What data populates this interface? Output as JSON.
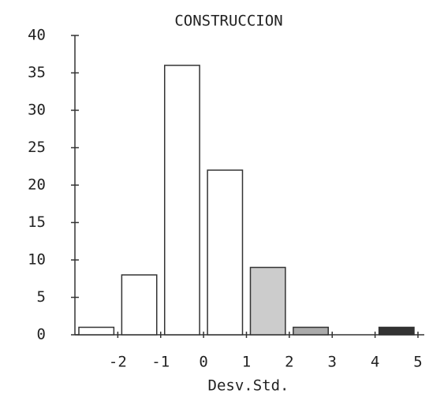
{
  "chart_data": {
    "type": "histogram",
    "title": "CONSTRUCCION",
    "x_label": "Desv.Std.",
    "bins": [
      -3,
      -2,
      -1,
      0,
      1,
      2,
      3,
      4,
      5
    ],
    "counts": [
      1,
      8,
      36,
      22,
      9,
      1,
      0,
      1
    ],
    "colors": [
      "#ffffff",
      "#ffffff",
      "#ffffff",
      "#ffffff",
      "#cccccc",
      "#aaaaaa",
      "#aaaaaa",
      "#333333"
    ],
    "xlim": [
      -3,
      5
    ],
    "xticks": [
      -2,
      -1,
      0,
      1,
      2,
      3,
      4,
      5
    ],
    "ylim": [
      0,
      40
    ],
    "yticks": [
      0,
      5,
      10,
      15,
      20,
      25,
      30,
      35,
      40
    ]
  }
}
